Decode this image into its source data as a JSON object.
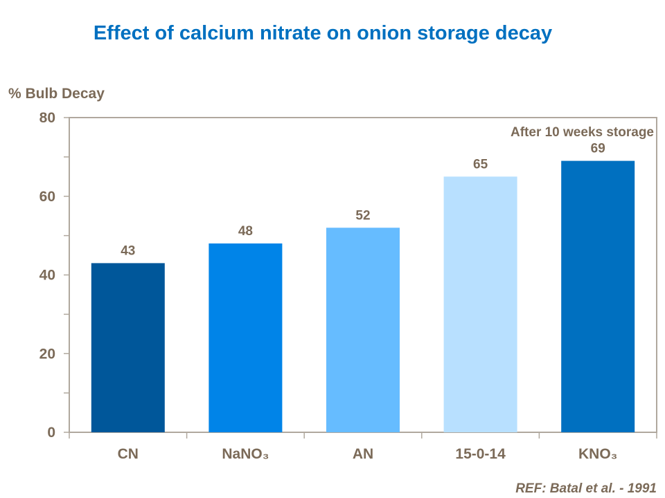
{
  "chart_data": {
    "type": "bar",
    "title": "Effect of calcium nitrate on onion storage decay",
    "ylabel": "% Bulb Decay",
    "xlabel": "",
    "categories": [
      "CN",
      "NaNO₃",
      "AN",
      "15-0-14",
      "KNO₃"
    ],
    "values": [
      43,
      48,
      52,
      65,
      69
    ],
    "colors": [
      "#00579A",
      "#0084E8",
      "#66BCFF",
      "#B8E0FF",
      "#0070C0"
    ],
    "ylim": [
      0,
      80
    ],
    "yticks": [
      0,
      20,
      40,
      60,
      80
    ],
    "minor_tick_step": 10,
    "grid": false,
    "annotation": "After 10 weeks storage",
    "data_labels": true
  },
  "reference": "REF: Batal et al. - 1991",
  "colors": {
    "title": "#0070C0",
    "text": "#7B6A58",
    "axis": "#B0A89E"
  }
}
